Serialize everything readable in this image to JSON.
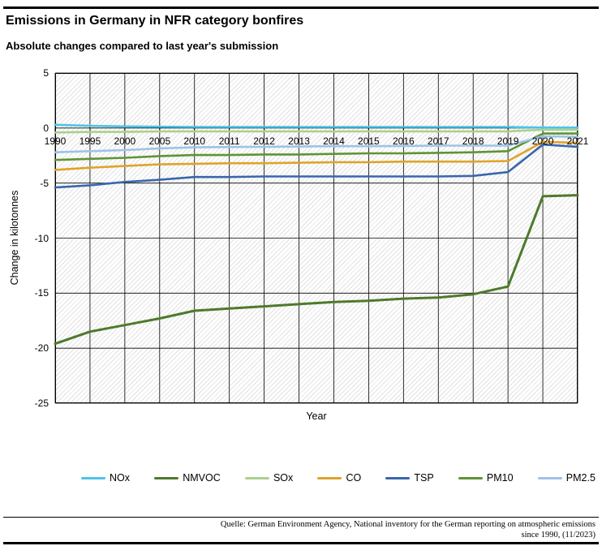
{
  "header": {
    "title": "Emissions in Germany in NFR category bonfires",
    "subtitle": "Absolute changes compared to last year's submission"
  },
  "chart_data": {
    "type": "line",
    "title": "Emissions in Germany in NFR category bonfires",
    "subtitle": "Absolute changes compared to last year's submission",
    "xlabel": "Year",
    "ylabel": "Change in kilotonnes",
    "x_categories": [
      "1990",
      "1995",
      "2000",
      "2005",
      "2010",
      "2011",
      "2012",
      "2013",
      "2014",
      "2015",
      "2016",
      "2017",
      "2018",
      "2019",
      "2020",
      "2021"
    ],
    "ylim": [
      -25,
      5
    ],
    "yticks": [
      5,
      0,
      -5,
      -10,
      -15,
      -20,
      -25
    ],
    "grid": "both",
    "plot_background": "diagonal-hatch",
    "legend_position": "bottom",
    "series": [
      {
        "name": "NOx",
        "color": "#4EC3E8",
        "values": [
          0.3,
          0.2,
          0.15,
          0.12,
          0.1,
          0.1,
          0.1,
          0.1,
          0.1,
          0.1,
          0.1,
          0.1,
          0.1,
          0.1,
          0.05,
          0.05
        ]
      },
      {
        "name": "NMVOC",
        "color": "#4E7A2B",
        "values": [
          -19.6,
          -18.5,
          -17.9,
          -17.3,
          -16.6,
          -16.4,
          -16.2,
          -16.0,
          -15.8,
          -15.7,
          -15.5,
          -15.4,
          -15.1,
          -14.4,
          -6.2,
          -6.1
        ]
      },
      {
        "name": "SOx",
        "color": "#A9D18E",
        "values": [
          -0.4,
          -0.35,
          -0.35,
          -0.3,
          -0.3,
          -0.3,
          -0.3,
          -0.3,
          -0.3,
          -0.3,
          -0.3,
          -0.3,
          -0.3,
          -0.3,
          -0.15,
          -0.15
        ]
      },
      {
        "name": "CO",
        "color": "#DFA32B",
        "values": [
          -3.8,
          -3.6,
          -3.45,
          -3.3,
          -3.25,
          -3.2,
          -3.2,
          -3.15,
          -3.1,
          -3.1,
          -3.05,
          -3.05,
          -3.05,
          -3.0,
          -1.25,
          -1.35
        ]
      },
      {
        "name": "TSP",
        "color": "#3B66AC",
        "values": [
          -5.4,
          -5.2,
          -4.9,
          -4.7,
          -4.45,
          -4.45,
          -4.4,
          -4.4,
          -4.4,
          -4.4,
          -4.4,
          -4.4,
          -4.35,
          -4.0,
          -1.5,
          -1.7
        ]
      },
      {
        "name": "PM10",
        "color": "#5E9434",
        "values": [
          -2.9,
          -2.8,
          -2.7,
          -2.55,
          -2.45,
          -2.45,
          -2.4,
          -2.4,
          -2.35,
          -2.3,
          -2.3,
          -2.25,
          -2.2,
          -2.1,
          -0.5,
          -0.5
        ]
      },
      {
        "name": "PM2.5",
        "color": "#9DC3E6",
        "values": [
          -2.2,
          -2.1,
          -2.0,
          -1.85,
          -1.75,
          -1.72,
          -1.7,
          -1.68,
          -1.65,
          -1.65,
          -1.63,
          -1.6,
          -1.6,
          -1.6,
          -0.75,
          -0.8
        ]
      }
    ]
  },
  "footer": {
    "line1": "Quelle: German Environment Agency, National inventory for the German reporting on atmospheric emissions",
    "line2": "since 1990, (11/2023)"
  }
}
